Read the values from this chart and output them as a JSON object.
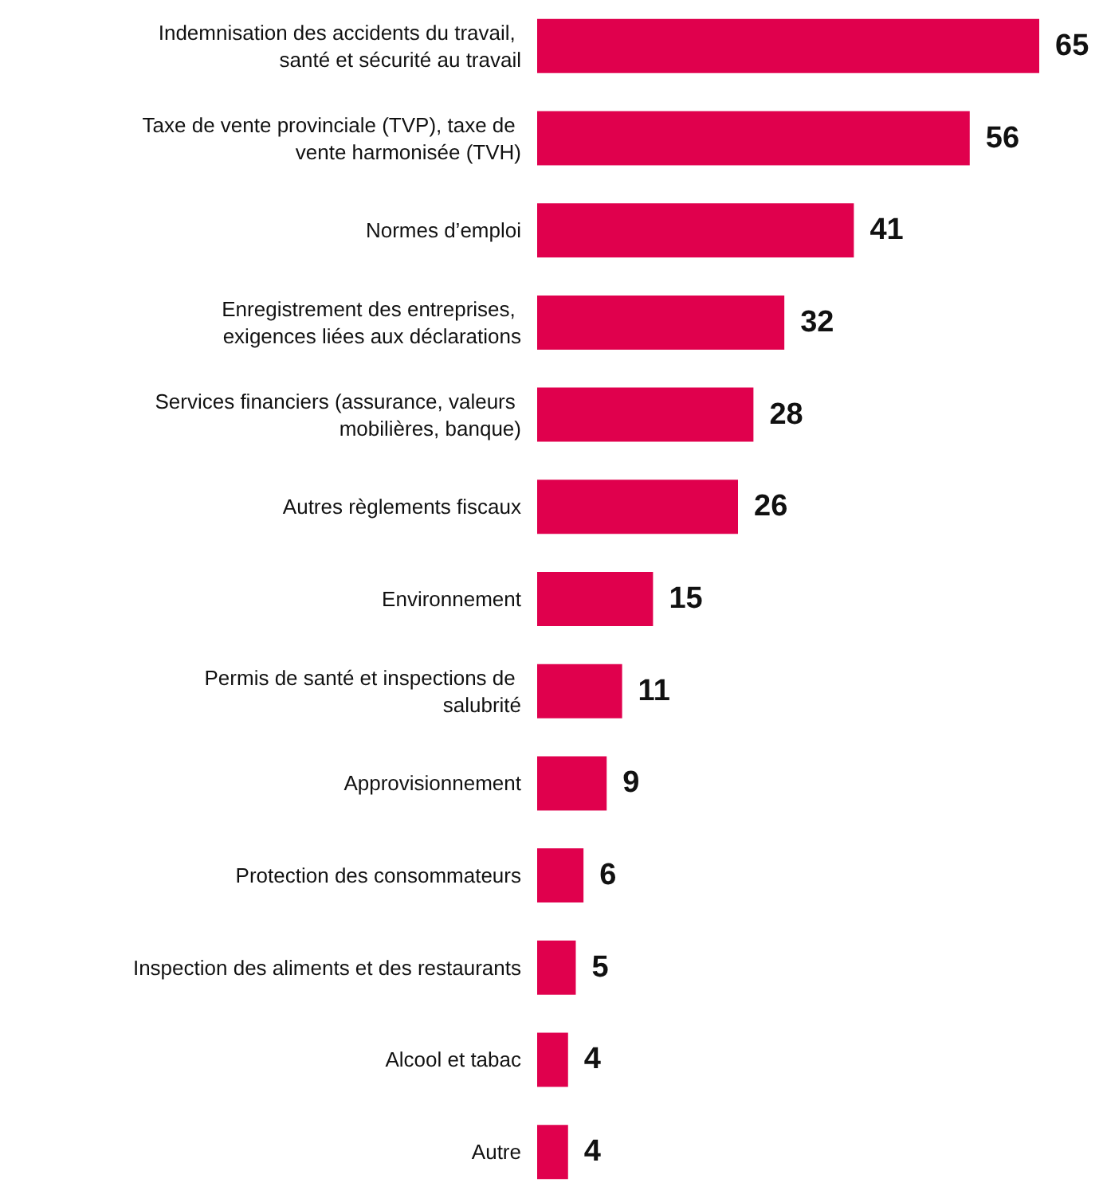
{
  "chart_data": {
    "type": "bar",
    "orientation": "horizontal",
    "data_labels": true,
    "categories": [
      "Indemnisation des accidents du travail, santé et sécurité au travail",
      "Taxe de vente provinciale (TVP), taxe de vente harmonisée (TVH)",
      "Normes d’emploi",
      "Enregistrement des entreprises, exigences liées aux déclarations",
      "Services financiers (assurance, valeurs mobilières, banque)",
      "Autres règlements fiscaux",
      "Environnement",
      "Permis de santé et inspections de salubrité",
      "Approvisionnement",
      "Protection des consommateurs",
      "Inspection des aliments et des restaurants",
      "Alcool et tabac",
      "Autre"
    ],
    "values": [
      65,
      56,
      41,
      32,
      28,
      26,
      15,
      11,
      9,
      6,
      5,
      4,
      4
    ],
    "color": "#e0004d"
  }
}
